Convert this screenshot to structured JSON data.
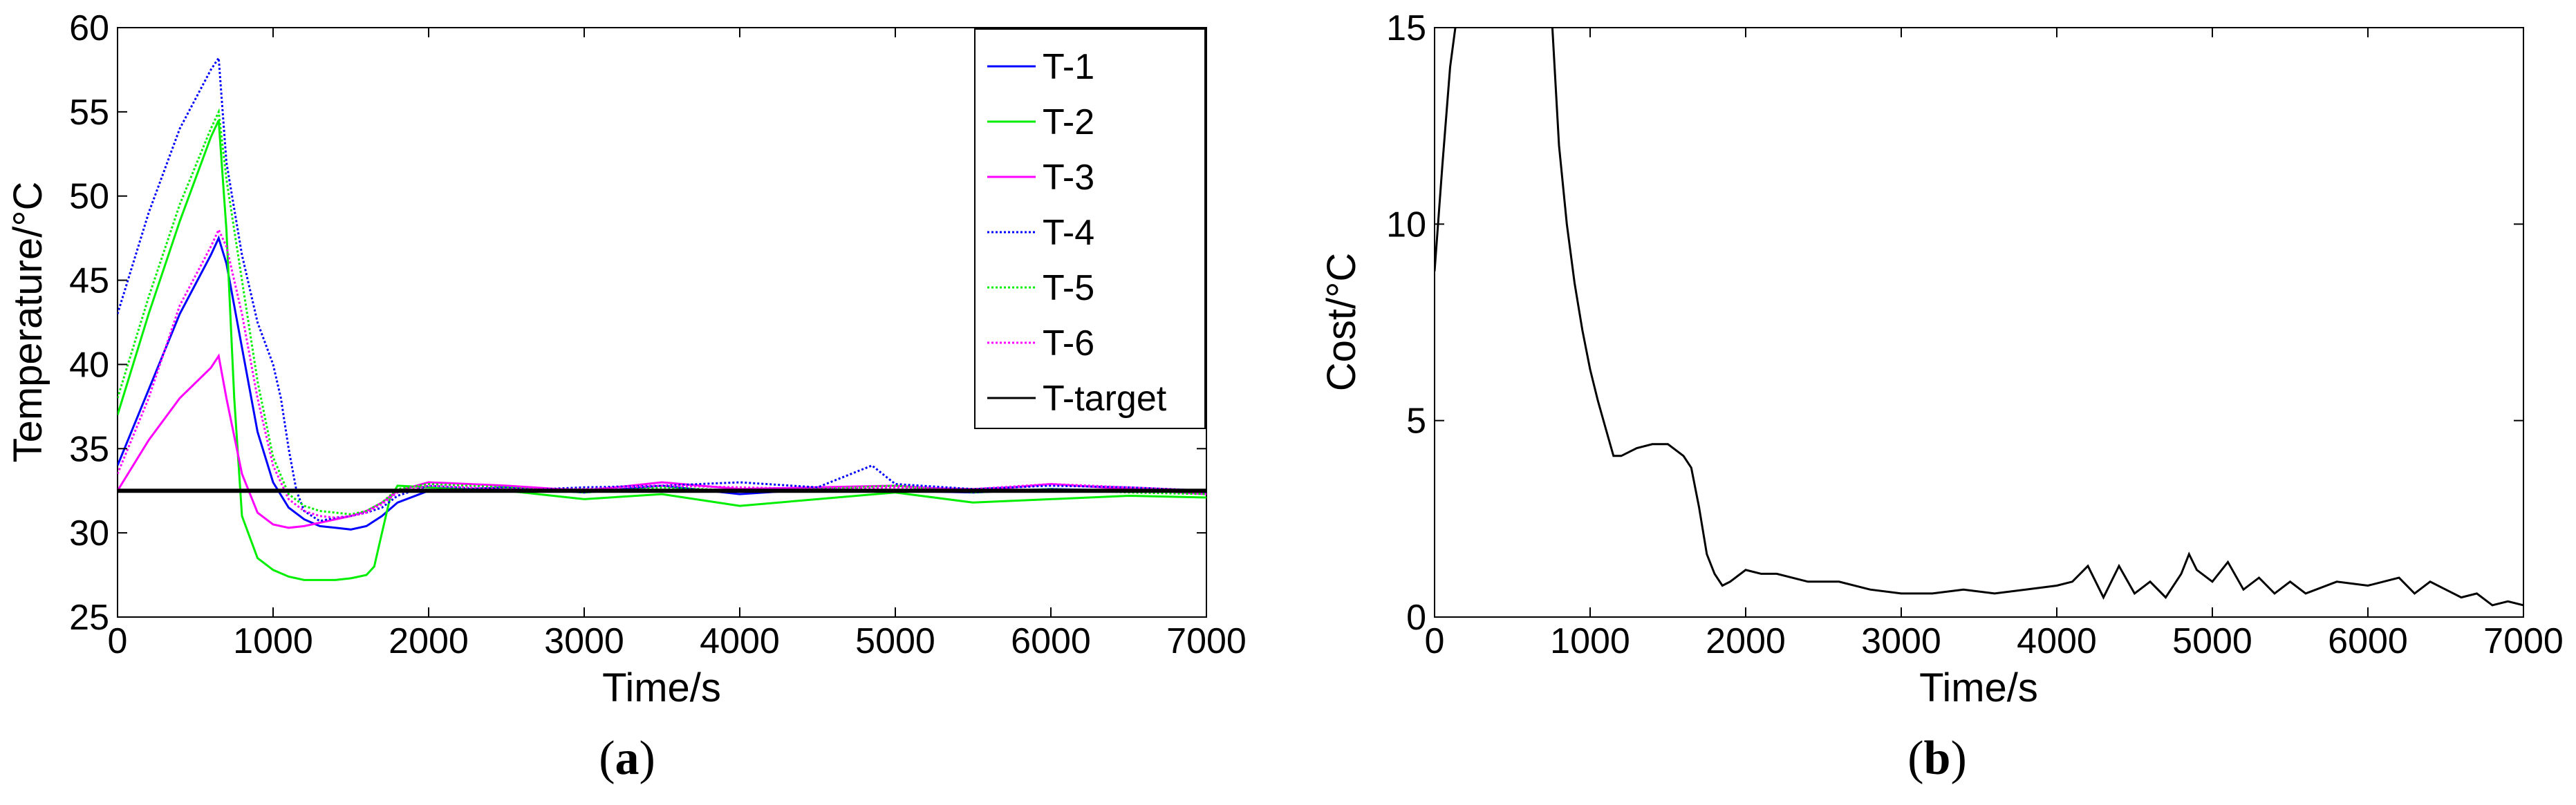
{
  "chart_data": [
    {
      "panel_label": "a",
      "type": "line",
      "xlabel": "Time/s",
      "ylabel": "Temperature/°C",
      "xlim": [
        0,
        7000
      ],
      "ylim": [
        25,
        60
      ],
      "xticks": [
        "0",
        "1000",
        "2000",
        "3000",
        "4000",
        "5000",
        "6000",
        "7000"
      ],
      "yticks": [
        "25",
        "30",
        "35",
        "40",
        "45",
        "50",
        "55",
        "60"
      ],
      "legend_position": "top-right",
      "grid": false,
      "series": [
        {
          "name": "T-1",
          "color": "#0000ff",
          "style": "solid",
          "x": [
            0,
            200,
            400,
            600,
            650,
            700,
            800,
            900,
            1000,
            1100,
            1200,
            1300,
            1400,
            1500,
            1600,
            1700,
            1800,
            2000,
            2500,
            3000,
            3500,
            4000,
            4500,
            5000,
            5500,
            6000,
            6500,
            7000
          ],
          "y": [
            34.0,
            38.5,
            43.0,
            46.5,
            47.5,
            46.0,
            41.0,
            36.0,
            33.0,
            31.5,
            30.8,
            30.4,
            30.3,
            30.2,
            30.4,
            31.0,
            31.8,
            32.5,
            32.7,
            32.4,
            32.8,
            32.3,
            32.6,
            32.5,
            32.4,
            32.6,
            32.5,
            32.4
          ]
        },
        {
          "name": "T-2",
          "color": "#00ee00",
          "style": "solid",
          "x": [
            0,
            200,
            400,
            600,
            650,
            700,
            750,
            800,
            900,
            1000,
            1100,
            1200,
            1300,
            1400,
            1500,
            1600,
            1650,
            1700,
            1750,
            1800,
            2000,
            2500,
            3000,
            3500,
            4000,
            4500,
            5000,
            5500,
            6000,
            6500,
            7000
          ],
          "y": [
            37.0,
            43.0,
            48.5,
            53.5,
            54.5,
            48.0,
            38.0,
            31.0,
            28.5,
            27.8,
            27.4,
            27.2,
            27.2,
            27.2,
            27.3,
            27.5,
            28.0,
            30.0,
            32.0,
            32.8,
            32.7,
            32.5,
            32.0,
            32.3,
            31.6,
            32.0,
            32.4,
            31.8,
            32.0,
            32.2,
            32.1
          ]
        },
        {
          "name": "T-3",
          "color": "#ff00ff",
          "style": "solid",
          "x": [
            0,
            200,
            400,
            600,
            650,
            700,
            800,
            900,
            1000,
            1100,
            1200,
            1300,
            1400,
            1500,
            1600,
            1700,
            1800,
            2000,
            2500,
            3000,
            3500,
            4000,
            4500,
            5000,
            5500,
            6000,
            6500,
            7000
          ],
          "y": [
            32.5,
            35.5,
            38.0,
            39.8,
            40.5,
            38.0,
            33.5,
            31.2,
            30.5,
            30.3,
            30.4,
            30.6,
            30.8,
            31.0,
            31.3,
            31.8,
            32.5,
            33.0,
            32.8,
            32.5,
            33.0,
            32.6,
            32.7,
            32.8,
            32.5,
            32.9,
            32.6,
            32.3
          ]
        },
        {
          "name": "T-4",
          "color": "#0000ff",
          "style": "dotted",
          "x": [
            0,
            200,
            400,
            600,
            650,
            700,
            800,
            900,
            1000,
            1050,
            1100,
            1150,
            1200,
            1300,
            1400,
            1500,
            1600,
            1700,
            1800,
            2000,
            2500,
            3000,
            3500,
            4000,
            4500,
            4850,
            5000,
            5500,
            6000,
            6500,
            7000
          ],
          "y": [
            43.0,
            49.0,
            54.0,
            57.5,
            58.2,
            52.0,
            46.5,
            42.5,
            40.0,
            38.0,
            35.0,
            32.5,
            31.3,
            30.7,
            30.9,
            31.0,
            31.2,
            31.5,
            32.2,
            32.8,
            32.5,
            32.7,
            32.8,
            33.0,
            32.7,
            34.0,
            32.9,
            32.6,
            32.8,
            32.7,
            32.5
          ]
        },
        {
          "name": "T-5",
          "color": "#00ee00",
          "style": "dotted",
          "x": [
            0,
            200,
            400,
            600,
            650,
            700,
            800,
            900,
            1000,
            1100,
            1200,
            1300,
            1400,
            1500,
            1600,
            1700,
            1800,
            2000,
            2500,
            3000,
            3500,
            4000,
            4500,
            5000,
            5500,
            6000,
            6500,
            7000
          ],
          "y": [
            38.0,
            44.0,
            49.5,
            54.0,
            55.0,
            51.0,
            45.0,
            39.0,
            34.5,
            32.3,
            31.6,
            31.3,
            31.2,
            31.1,
            31.3,
            31.8,
            32.6,
            32.9,
            32.7,
            32.4,
            32.7,
            32.5,
            32.6,
            32.8,
            32.4,
            32.6,
            32.4,
            32.3
          ]
        },
        {
          "name": "T-6",
          "color": "#ff00ff",
          "style": "dotted",
          "x": [
            0,
            200,
            400,
            600,
            650,
            700,
            800,
            900,
            1000,
            1100,
            1200,
            1300,
            1400,
            1500,
            1600,
            1700,
            1800,
            2000,
            2500,
            3000,
            3500,
            4000,
            4500,
            5000,
            5500,
            6000,
            6500,
            7000
          ],
          "y": [
            33.5,
            38.0,
            43.5,
            47.0,
            48.0,
            47.0,
            43.0,
            38.0,
            34.0,
            32.0,
            31.3,
            31.0,
            30.9,
            31.0,
            31.2,
            31.7,
            32.4,
            32.8,
            32.6,
            32.6,
            32.8,
            32.7,
            32.6,
            32.7,
            32.6,
            32.9,
            32.7,
            32.5
          ]
        },
        {
          "name": "T-target",
          "color": "#000000",
          "style": "solid",
          "x": [
            0,
            7000
          ],
          "y": [
            32.5,
            32.5
          ]
        }
      ]
    },
    {
      "panel_label": "b",
      "type": "line",
      "xlabel": "Time/s",
      "ylabel": "Cost/°C",
      "xlim": [
        0,
        7000
      ],
      "ylim": [
        0,
        15
      ],
      "xticks": [
        "0",
        "1000",
        "2000",
        "3000",
        "4000",
        "5000",
        "6000",
        "7000"
      ],
      "yticks": [
        "0",
        "5",
        "10",
        "15"
      ],
      "grid": false,
      "series": [
        {
          "color": "#000000",
          "style": "solid",
          "x": [
            0,
            50,
            100,
            150,
            750,
            800,
            850,
            900,
            950,
            1000,
            1050,
            1100,
            1150,
            1200,
            1300,
            1400,
            1500,
            1600,
            1650,
            1700,
            1750,
            1800,
            1850,
            1900,
            2000,
            2100,
            2200,
            2400,
            2600,
            2800,
            3000,
            3200,
            3400,
            3600,
            3800,
            4000,
            4100,
            4200,
            4300,
            4400,
            4500,
            4600,
            4700,
            4800,
            4850,
            4900,
            5000,
            5100,
            5200,
            5300,
            5400,
            5500,
            5600,
            5800,
            6000,
            6200,
            6300,
            6400,
            6500,
            6600,
            6700,
            6800,
            6900,
            7000
          ],
          "y": [
            8.8,
            11.5,
            14.0,
            15.5,
            15.5,
            12.0,
            10.0,
            8.5,
            7.3,
            6.3,
            5.5,
            4.8,
            4.1,
            4.1,
            4.3,
            4.4,
            4.4,
            4.1,
            3.8,
            2.8,
            1.6,
            1.1,
            0.8,
            0.9,
            1.2,
            1.1,
            1.1,
            0.9,
            0.9,
            0.7,
            0.6,
            0.6,
            0.7,
            0.6,
            0.7,
            0.8,
            0.9,
            1.3,
            0.5,
            1.3,
            0.6,
            0.9,
            0.5,
            1.1,
            1.6,
            1.2,
            0.9,
            1.4,
            0.7,
            1.0,
            0.6,
            0.9,
            0.6,
            0.9,
            0.8,
            1.0,
            0.6,
            0.9,
            0.7,
            0.5,
            0.6,
            0.3,
            0.4,
            0.3
          ]
        }
      ]
    }
  ]
}
